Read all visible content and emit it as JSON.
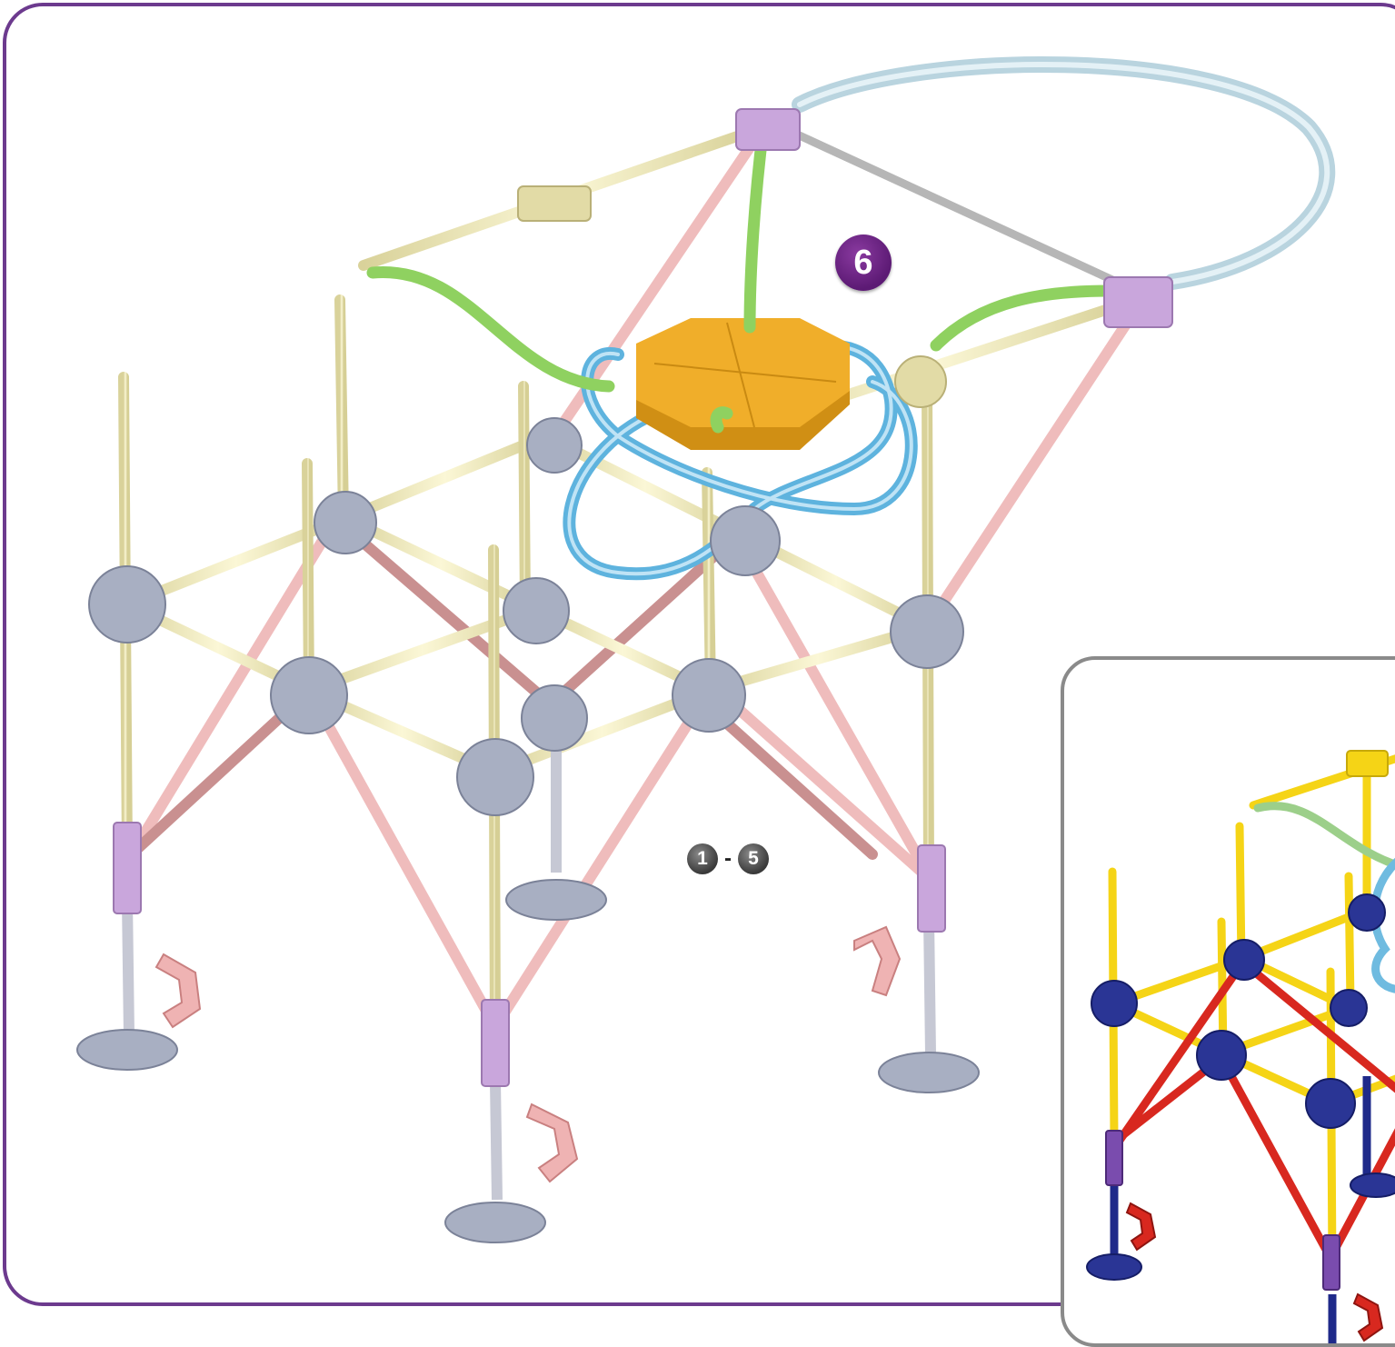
{
  "step": {
    "number": "6"
  },
  "previous_steps": {
    "from": "1",
    "separator": "-",
    "to": "5"
  },
  "colors": {
    "frame_border": "#6c3a8e",
    "badge": "#6b2585",
    "rod_yellow_light": "#f3edb8",
    "rod_pink_light": "#efb9b9",
    "connector_gray": "#9aa3b6",
    "connector_purple": "#c9a6dc",
    "tube_blue": "#6fbbe0",
    "tube_green": "#8ccf5a",
    "hub_orange": "#e7a522",
    "inset_yellow": "#f5d416",
    "inset_red": "#d8281f",
    "inset_navy": "#1f2a8a"
  }
}
